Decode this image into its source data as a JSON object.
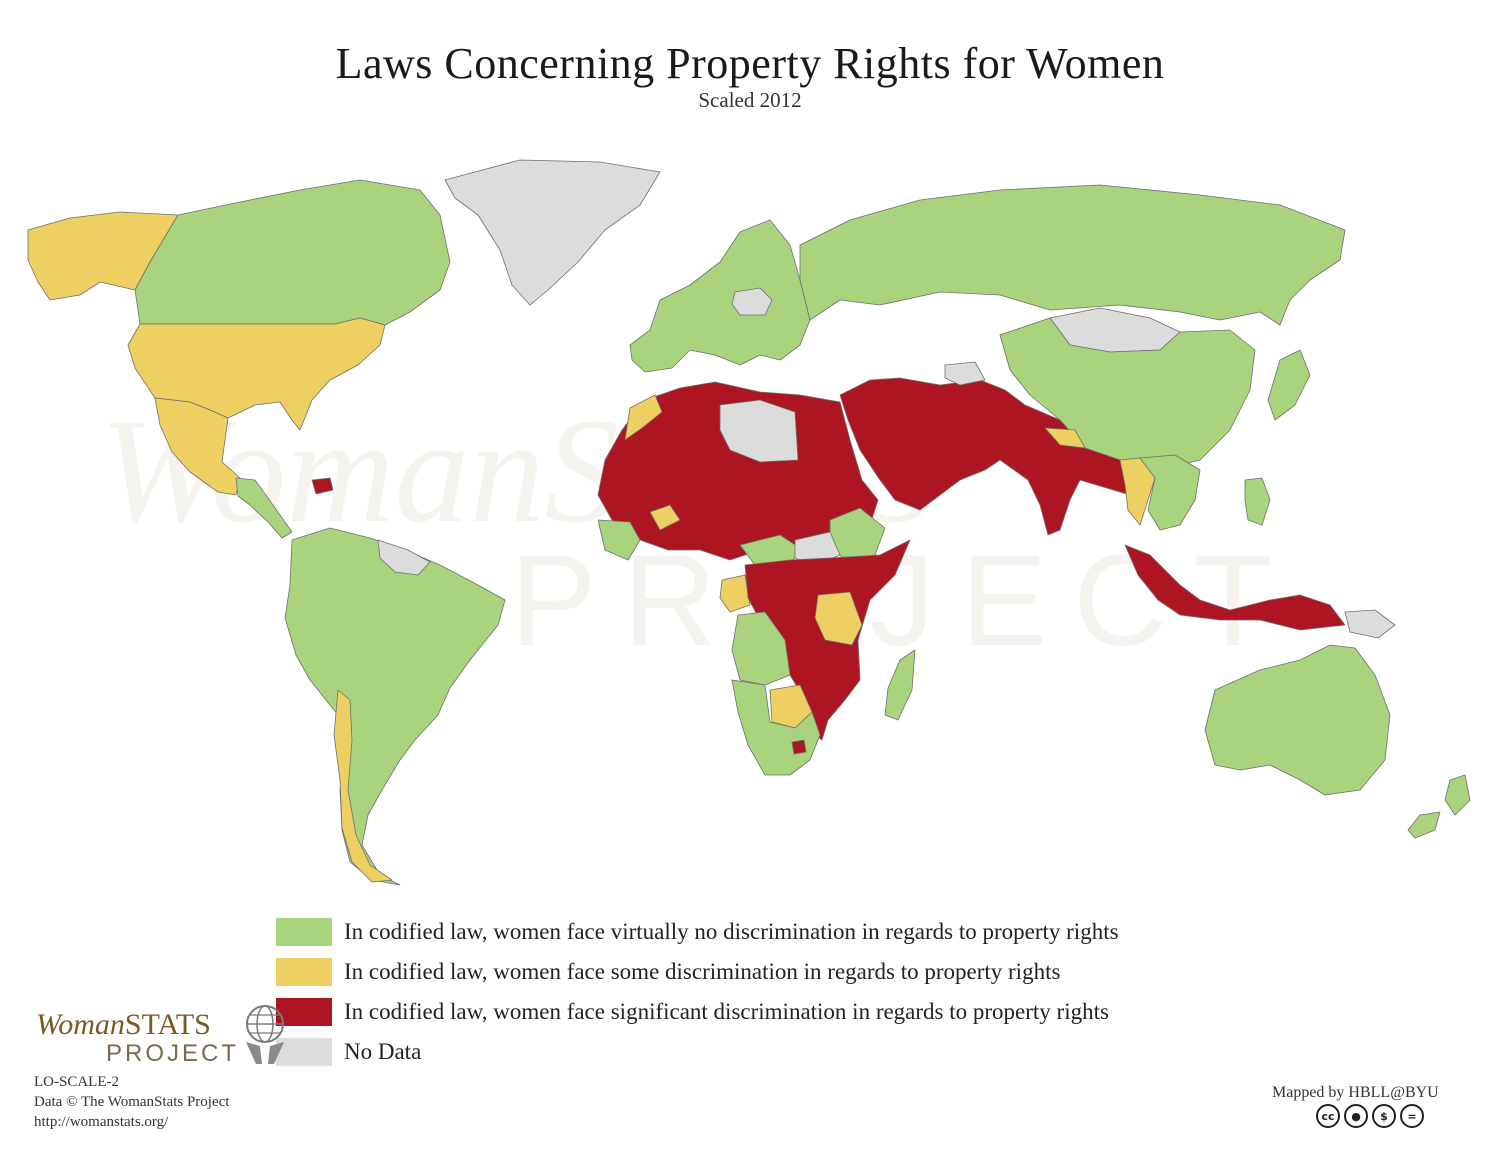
{
  "title": "Laws Concerning Property Rights for Women",
  "subtitle": "Scaled 2012",
  "colors": {
    "none": "#a9d37c",
    "some": "#edd061",
    "significant": "#ad1522",
    "nodata": "#dcdcdc",
    "border": "#6f6f6f"
  },
  "legend": [
    {
      "category": "none",
      "label": "In codified law, women face virtually no discrimination in regards to property rights"
    },
    {
      "category": "some",
      "label": "In codified law, women face some discrimination in regards to property rights"
    },
    {
      "category": "significant",
      "label": "In codified law, women face significant discrimination in regards to property rights"
    },
    {
      "category": "nodata",
      "label": "No Data"
    }
  ],
  "regions": [
    {
      "name": "greenland",
      "category": "nodata"
    },
    {
      "name": "alaska",
      "category": "some"
    },
    {
      "name": "canada",
      "category": "none"
    },
    {
      "name": "usa",
      "category": "some"
    },
    {
      "name": "mexico",
      "category": "some"
    },
    {
      "name": "central-america",
      "category": "none"
    },
    {
      "name": "haiti",
      "category": "significant"
    },
    {
      "name": "guianas",
      "category": "nodata"
    },
    {
      "name": "south-america",
      "category": "none"
    },
    {
      "name": "chile",
      "category": "some"
    },
    {
      "name": "europe",
      "category": "none"
    },
    {
      "name": "belarus",
      "category": "nodata"
    },
    {
      "name": "russia",
      "category": "none"
    },
    {
      "name": "mongolia",
      "category": "nodata"
    },
    {
      "name": "china",
      "category": "none"
    },
    {
      "name": "japan",
      "category": "none"
    },
    {
      "name": "north-africa-sahel",
      "category": "significant"
    },
    {
      "name": "libya",
      "category": "nodata"
    },
    {
      "name": "morocco",
      "category": "some"
    },
    {
      "name": "burkina-faso",
      "category": "some"
    },
    {
      "name": "west-africa-coast",
      "category": "none"
    },
    {
      "name": "central-african-republic",
      "category": "none"
    },
    {
      "name": "ethiopia",
      "category": "none"
    },
    {
      "name": "south-sudan",
      "category": "nodata"
    },
    {
      "name": "gabon",
      "category": "some"
    },
    {
      "name": "central-east-africa",
      "category": "significant"
    },
    {
      "name": "tanzania",
      "category": "some"
    },
    {
      "name": "angola",
      "category": "none"
    },
    {
      "name": "botswana",
      "category": "some"
    },
    {
      "name": "southern-africa",
      "category": "none"
    },
    {
      "name": "lesotho",
      "category": "significant"
    },
    {
      "name": "madagascar",
      "category": "none"
    },
    {
      "name": "middle-east-south-asia",
      "category": "significant"
    },
    {
      "name": "turkmenistan",
      "category": "nodata"
    },
    {
      "name": "nepal",
      "category": "some"
    },
    {
      "name": "myanmar",
      "category": "some"
    },
    {
      "name": "southeast-asia",
      "category": "none"
    },
    {
      "name": "indonesia",
      "category": "significant"
    },
    {
      "name": "papua-new-guinea",
      "category": "nodata"
    },
    {
      "name": "philippines",
      "category": "none"
    },
    {
      "name": "australia",
      "category": "none"
    },
    {
      "name": "new-zealand",
      "category": "none"
    }
  ],
  "watermark": {
    "wordmark": "WomanSTATS",
    "project": "PROJECT"
  },
  "logo": {
    "woman": "Woman",
    "stats": "STATS",
    "project": "PROJECT"
  },
  "info": [
    "LO-SCALE-2",
    "Data © The WomanStats Project",
    "http://womanstats.org/"
  ],
  "credit": "Mapped by HBLL@BYU",
  "cc_icons": [
    "cc",
    "by",
    "nc",
    "nd"
  ]
}
